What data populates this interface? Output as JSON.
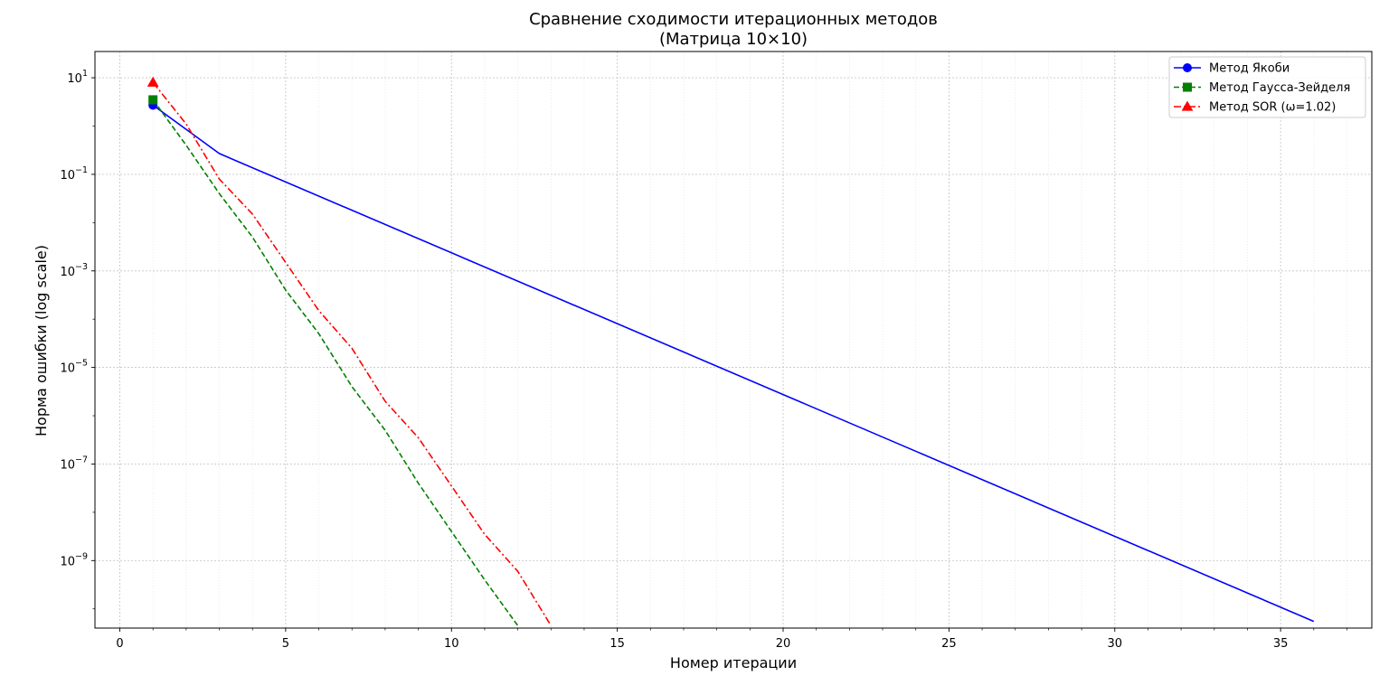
{
  "chart_data": {
    "type": "line",
    "title": "Сравнение сходимости итерационных методов",
    "subtitle": "(Матрица 10×10)",
    "xlabel": "Номер итерации",
    "ylabel": "Норма ошибки (log scale)",
    "yscale": "log",
    "grid": true,
    "legend_position": "top-right",
    "xlim": [
      -0.75,
      37.75
    ],
    "ylim": [
      4e-11,
      35
    ],
    "x_ticks": [
      0,
      5,
      10,
      15,
      20,
      25,
      30,
      35
    ],
    "x_tick_labels": [
      "0",
      "5",
      "10",
      "15",
      "20",
      "25",
      "30",
      "35"
    ],
    "y_ticks": [
      {
        "value": 10,
        "base": "10",
        "exp": "1"
      },
      {
        "value": 0.1,
        "base": "10",
        "exp": "−1"
      },
      {
        "value": 0.001,
        "base": "10",
        "exp": "−3"
      },
      {
        "value": 1e-05,
        "base": "10",
        "exp": "−5"
      },
      {
        "value": 1e-07,
        "base": "10",
        "exp": "−7"
      },
      {
        "value": 1e-09,
        "base": "10",
        "exp": "−9"
      }
    ],
    "series": [
      {
        "name": "Метод Якоби",
        "color": "#0000ff",
        "dash": "solid",
        "marker": "circle",
        "x": [
          1,
          3,
          36
        ],
        "y": [
          2.7,
          0.27,
          5.5e-11
        ]
      },
      {
        "name": "Метод Гаусса-Зейделя",
        "color": "#008000",
        "dash": "dashed",
        "marker": "square",
        "x": [
          1,
          2,
          3,
          4,
          5,
          6,
          7,
          8,
          9,
          10,
          11,
          12
        ],
        "y": [
          3.5,
          0.4,
          0.04,
          0.005,
          0.0004,
          5e-05,
          4e-06,
          5e-07,
          4e-08,
          4e-09,
          4e-10,
          4.5e-11
        ]
      },
      {
        "name": "Метод SOR (ω=1.02)",
        "color": "#ff0000",
        "dash": "dashdot",
        "marker": "triangle",
        "x": [
          1,
          2,
          3,
          4,
          5,
          6,
          7,
          8,
          9,
          10,
          11,
          12,
          13
        ],
        "y": [
          8,
          1.1,
          0.08,
          0.015,
          0.0015,
          0.00015,
          2.5e-05,
          2e-06,
          3.5e-07,
          3.5e-08,
          3.5e-09,
          6e-10,
          4.5e-11
        ]
      }
    ]
  }
}
